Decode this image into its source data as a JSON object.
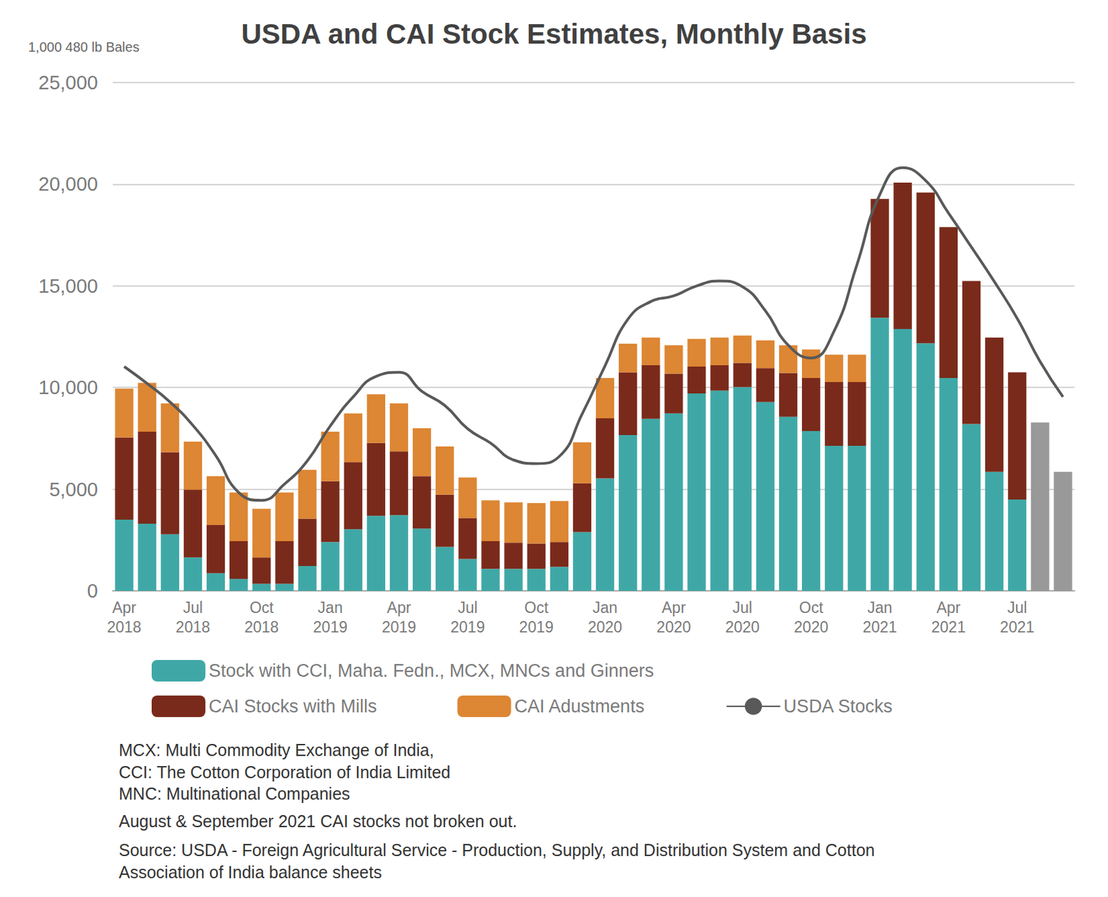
{
  "chart_data": {
    "type": "bar",
    "title": "USDA and CAI Stock Estimates, Monthly Basis",
    "y_label": "1,000 480 lb Bales",
    "categories": [
      "Apr\n2018",
      null,
      null,
      "Jul\n2018",
      null,
      null,
      "Oct\n2018",
      null,
      null,
      "Jan\n2019",
      null,
      null,
      "Apr\n2019",
      null,
      null,
      "Jul\n2019",
      null,
      null,
      "Oct\n2019",
      null,
      null,
      "Jan\n2020",
      null,
      null,
      "Apr\n2020",
      null,
      null,
      "Jul\n2020",
      null,
      null,
      "Oct\n2020",
      null,
      null,
      "Jan\n2021",
      null,
      null,
      "Apr\n2021",
      null,
      null,
      "Jul\n2021",
      null,
      null
    ],
    "stacked": true,
    "grid": true,
    "legend": "bottom",
    "series": [
      {
        "name": "Stock with CCI, Maha. Fedn., MCX, MNCs and Ginners",
        "type": "bar",
        "color": "#3fa8a6",
        "values": [
          3500,
          3300,
          2780,
          1640,
          870,
          590,
          350,
          350,
          1220,
          2400,
          3030,
          3690,
          3720,
          3060,
          2160,
          1570,
          1080,
          1080,
          1080,
          1180,
          2890,
          5530,
          7660,
          8460,
          8730,
          9710,
          9850,
          10020,
          9290,
          8560,
          7860,
          7130,
          7130,
          13430,
          12880,
          12180,
          10470,
          8210,
          5850,
          4490,
          null,
          null
        ]
      },
      {
        "name": "CAI Stocks with Mills",
        "type": "bar",
        "color": "#7a2a1a",
        "values": [
          4050,
          4530,
          4040,
          3340,
          2370,
          1850,
          1290,
          2090,
          2330,
          2990,
          3300,
          3580,
          3140,
          2580,
          2570,
          2010,
          1360,
          1290,
          1250,
          1220,
          2400,
          2960,
          3090,
          2640,
          1950,
          1320,
          1250,
          1190,
          1670,
          2160,
          2610,
          3140,
          3140,
          5850,
          7200,
          7410,
          7420,
          7030,
          6610,
          6260,
          null,
          null
        ]
      },
      {
        "name": "CAI Adustments",
        "type": "bar",
        "color": "#dd8633",
        "values": [
          2400,
          2400,
          2400,
          2360,
          2400,
          2400,
          2400,
          2400,
          2400,
          2440,
          2400,
          2400,
          2360,
          2360,
          2370,
          1990,
          2010,
          1980,
          1990,
          2020,
          2020,
          1980,
          1400,
          1360,
          1400,
          1360,
          1360,
          1350,
          1360,
          1360,
          1400,
          1350,
          1350,
          null,
          null,
          null,
          null,
          null,
          null,
          null,
          null,
          null
        ]
      },
      {
        "type": "bar",
        "color": "#999999",
        "values": [
          null,
          null,
          null,
          null,
          null,
          null,
          null,
          null,
          null,
          null,
          null,
          null,
          null,
          null,
          null,
          null,
          null,
          null,
          null,
          null,
          null,
          null,
          null,
          null,
          null,
          null,
          null,
          null,
          null,
          null,
          null,
          null,
          null,
          null,
          null,
          null,
          null,
          null,
          null,
          null,
          8280,
          5850
        ]
      },
      {
        "name": "USDA Stocks",
        "type": "line",
        "color": "#595959",
        "values": [
          11030,
          10200,
          9290,
          8140,
          6650,
          4840,
          4450,
          5250,
          6400,
          8110,
          9540,
          10550,
          10750,
          9810,
          9120,
          7970,
          7270,
          6440,
          6260,
          6610,
          8700,
          11070,
          13360,
          14230,
          14510,
          15000,
          15240,
          14960,
          13780,
          12080,
          11450,
          12770,
          16040,
          19490,
          20810,
          20180,
          18580,
          16910,
          15210,
          13400,
          11280,
          9540
        ]
      }
    ],
    "ylim": [
      0,
      25000
    ],
    "yticks": [
      0,
      {
        "value": 5000,
        "label": "5,000"
      },
      {
        "value": 10000,
        "label": "10,000"
      },
      {
        "value": 15000,
        "label": "15,000"
      },
      {
        "value": 20000,
        "label": "20,000"
      },
      {
        "value": 25000,
        "label": "25,000"
      }
    ],
    "notes": [
      "MCX: Multi Commodity Exchange of India,",
      "CCI: The Cotton Corporation of India Limited",
      "MNC: Multinational Companies",
      "August & September 2021 CAI stocks not broken out.",
      "Source: USDA - Foreign Agricultural Service - Production, Supply, and Distribution System and Cotton Association of India balance sheets"
    ]
  }
}
